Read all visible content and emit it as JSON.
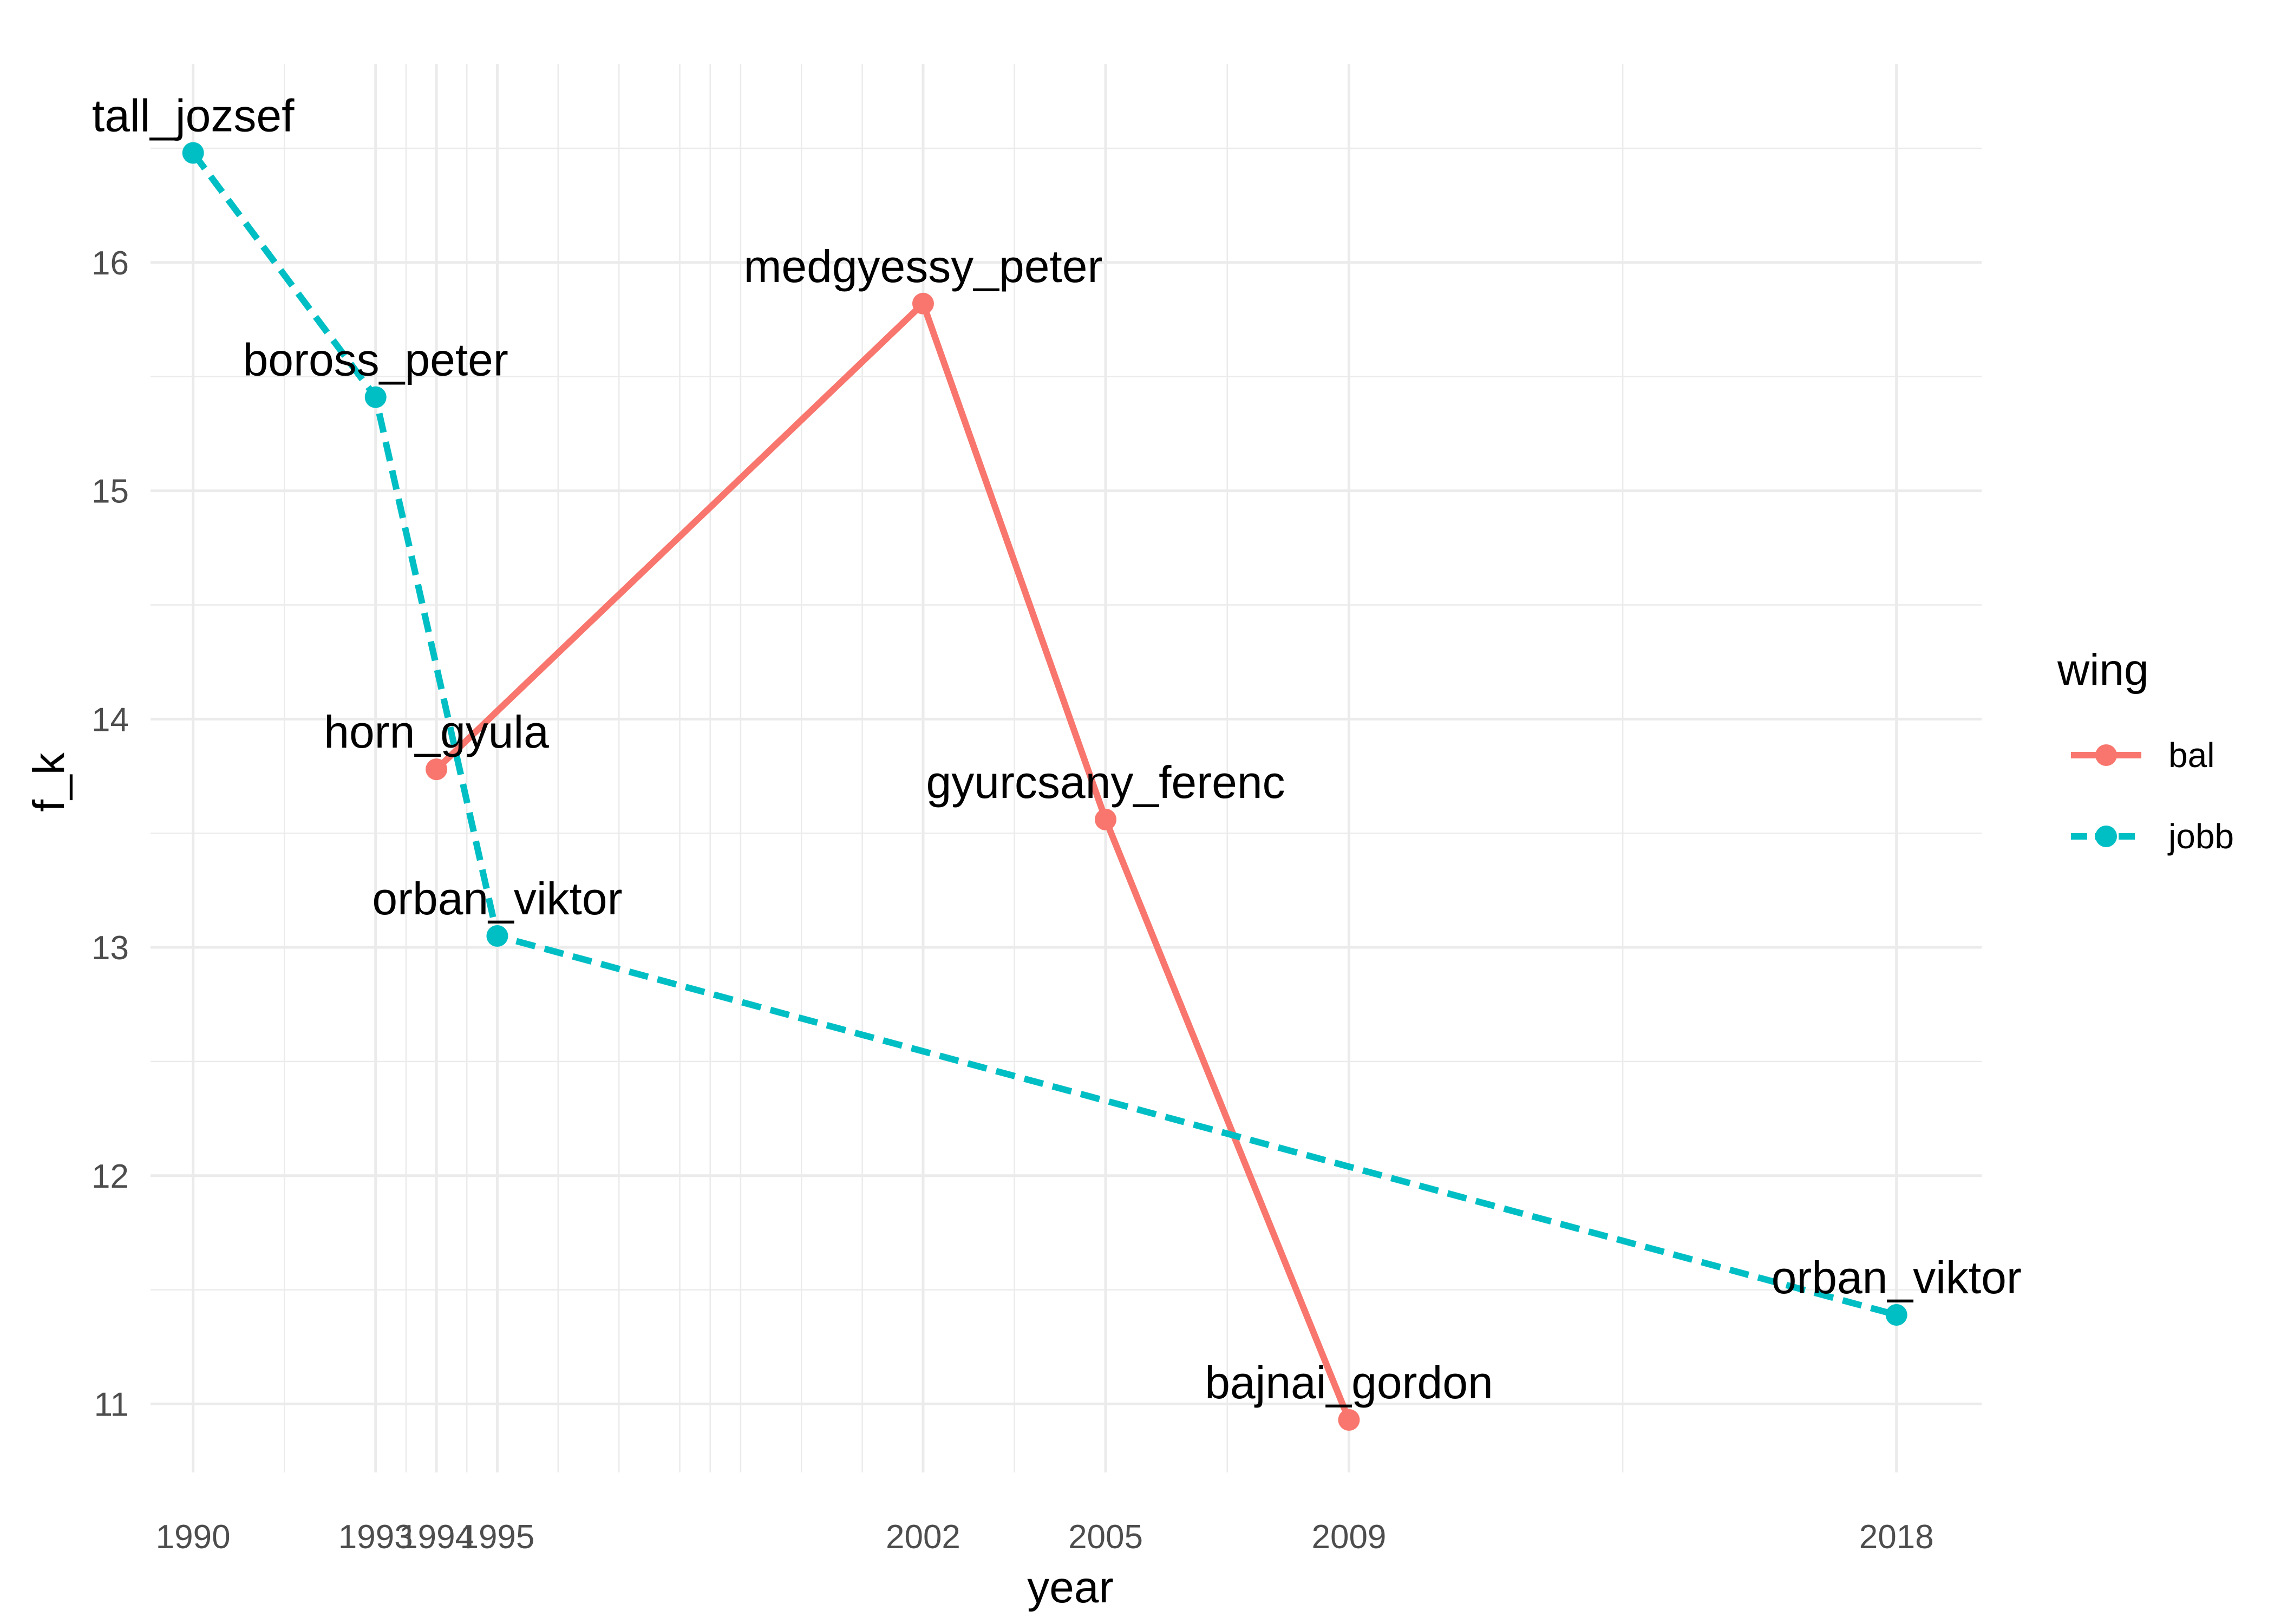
{
  "chart_data": {
    "type": "line",
    "title": "",
    "xlabel": "year",
    "ylabel": "f_k",
    "xlim": [
      1989.3,
      2019.4
    ],
    "ylim": [
      10.7,
      16.87
    ],
    "grid": true,
    "legend": {
      "title": "wing",
      "placement": "right"
    },
    "x_ticks": [
      1990,
      1993,
      1994,
      1995,
      2002,
      2005,
      2009,
      2018
    ],
    "x_tick_labels": [
      "1990",
      "1993",
      "1994",
      "1995",
      "2002",
      "2005",
      "2009",
      "2018"
    ],
    "y_ticks": [
      11,
      12,
      13,
      14,
      15,
      16
    ],
    "y_tick_labels": [
      "11",
      "12",
      "13",
      "14",
      "15",
      "16"
    ],
    "series": [
      {
        "name": "bal",
        "color": "#F8766D",
        "line_style": "solid",
        "points": [
          {
            "x": 1994,
            "y": 13.78,
            "label": "horn_gyula"
          },
          {
            "x": 2002,
            "y": 15.82,
            "label": "medgyessy_peter"
          },
          {
            "x": 2005,
            "y": 13.56,
            "label": "gyurcsany_ferenc"
          },
          {
            "x": 2009,
            "y": 10.93,
            "label": "bajnai_gordon"
          }
        ]
      },
      {
        "name": "jobb",
        "color": "#00BFC4",
        "line_style": "dashed",
        "points": [
          {
            "x": 1990,
            "y": 16.48,
            "label": "tall_jozsef"
          },
          {
            "x": 1993,
            "y": 15.41,
            "label": "boross_peter"
          },
          {
            "x": 1995,
            "y": 13.05,
            "label": "orban_viktor"
          },
          {
            "x": 2018,
            "y": 11.39,
            "label": "orban_viktor"
          }
        ]
      }
    ]
  }
}
